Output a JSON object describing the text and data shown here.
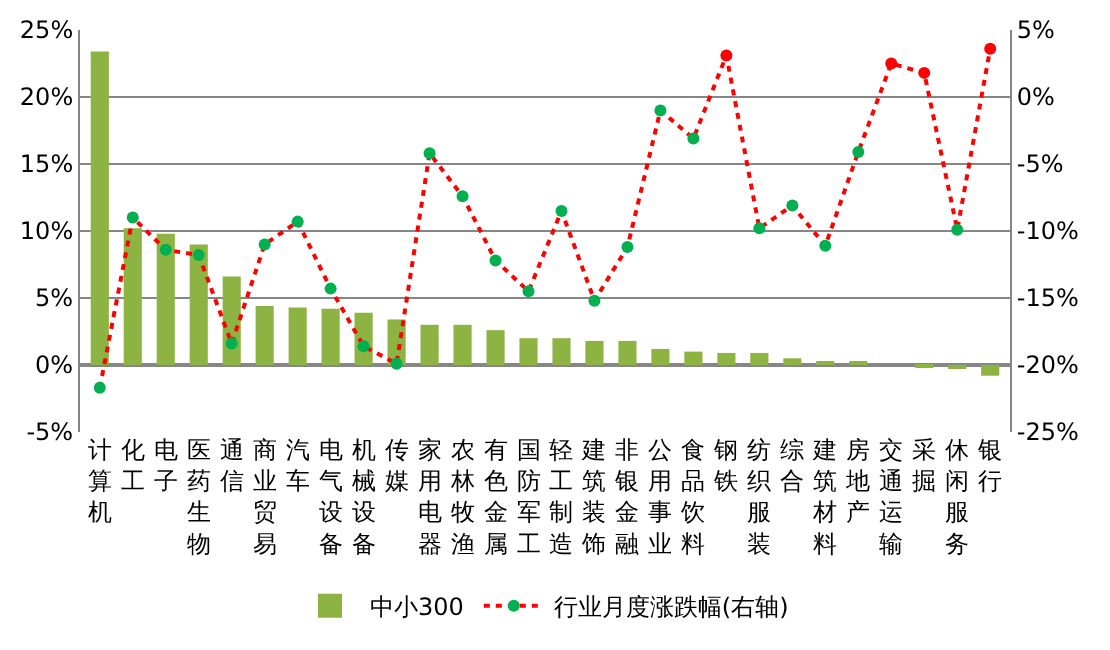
{
  "chart_data": {
    "type": "bar",
    "categories": [
      "计算机",
      "化工",
      "电子",
      "医药生物",
      "通信",
      "商业贸易",
      "汽车",
      "电气设备",
      "机械设备",
      "传媒",
      "家用电器",
      "农林牧渔",
      "有色金属",
      "国防军工",
      "轻工制造",
      "建筑装饰",
      "非银金融",
      "公用事业",
      "食品饮料",
      "钢铁",
      "纺织服装",
      "综合",
      "建筑材料",
      "房地产",
      "交通运输",
      "采掘",
      "休闲服务",
      "银行"
    ],
    "series": [
      {
        "name": "中小300",
        "color": "#8db443",
        "values": [
          23.4,
          10.2,
          9.8,
          9.0,
          6.6,
          4.4,
          4.3,
          4.2,
          3.9,
          3.4,
          3.0,
          3.0,
          2.6,
          2.0,
          2.0,
          1.8,
          1.8,
          1.2,
          1.0,
          0.9,
          0.9,
          0.5,
          0.3,
          0.3,
          0.0,
          -0.2,
          -0.3,
          -0.8
        ]
      },
      {
        "name": "行业月度涨跌幅(右轴)",
        "type": "line",
        "axis": "y2",
        "color": "#ff0000",
        "line_style": "dotted",
        "marker": "circle",
        "colors": [
          "#00b050",
          "#00b050",
          "#00b050",
          "#00b050",
          "#00b050",
          "#00b050",
          "#00b050",
          "#00b050",
          "#00b050",
          "#00b050",
          "#00b050",
          "#00b050",
          "#00b050",
          "#00b050",
          "#00b050",
          "#00b050",
          "#00b050",
          "#00b050",
          "#00b050",
          "#ff0000",
          "#00b050",
          "#00b050",
          "#00b050",
          "#00b050",
          "#ff0000",
          "#ff0000",
          "#00b050",
          "#ff0000"
        ],
        "values": [
          -21.7,
          -9.0,
          -11.4,
          -11.8,
          -18.4,
          -11.0,
          -9.3,
          -14.3,
          -18.6,
          -19.9,
          -4.2,
          -7.4,
          -12.2,
          -14.5,
          -8.5,
          -15.2,
          -11.2,
          -1.0,
          -3.1,
          3.1,
          -9.8,
          -8.1,
          -11.1,
          -4.1,
          2.5,
          1.8,
          -9.9,
          3.6
        ]
      }
    ],
    "ylim": [
      -5,
      25
    ],
    "yticks": [
      {
        "value": -5,
        "label": "-5%"
      },
      {
        "value": 0,
        "label": "0%"
      },
      {
        "value": 5,
        "label": "5%"
      },
      {
        "value": 10,
        "label": "10%"
      },
      {
        "value": 15,
        "label": "15%"
      },
      {
        "value": 20,
        "label": "20%"
      },
      {
        "value": 25,
        "label": "25%"
      }
    ],
    "y2lim": [
      -25,
      5
    ],
    "y2ticks": [
      {
        "value": -25,
        "label": "-25%"
      },
      {
        "value": -20,
        "label": "-20%"
      },
      {
        "value": -15,
        "label": "-15%"
      },
      {
        "value": -10,
        "label": "-10%"
      },
      {
        "value": -5,
        "label": "-5%"
      },
      {
        "value": 0,
        "label": "0%"
      },
      {
        "value": 5,
        "label": "5%"
      }
    ],
    "grid": "y",
    "legend": "bottom"
  }
}
